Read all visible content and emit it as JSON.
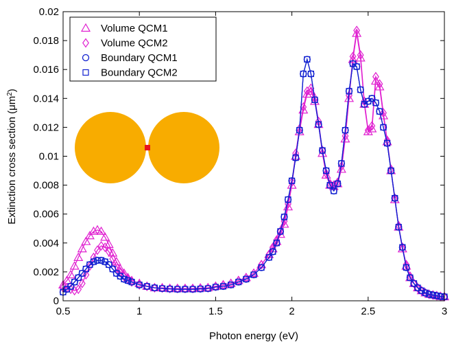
{
  "chart_data": {
    "type": "line",
    "title": "",
    "xlabel": "Photon energy (eV)",
    "ylabel_text": "Extinction cross section (",
    "ylabel_unit": "μm",
    "ylabel_sup": "2",
    "ylabel_close": ")",
    "xlim": [
      0.5,
      3
    ],
    "ylim": [
      0,
      0.02
    ],
    "xticks": [
      0.5,
      1,
      1.5,
      2,
      2.5,
      3
    ],
    "xtick_labels": [
      "0.5",
      "1",
      "1.5",
      "2",
      "2.5",
      "3"
    ],
    "yticks": [
      0,
      0.002,
      0.004,
      0.006,
      0.008,
      0.01,
      0.012,
      0.014,
      0.016,
      0.018,
      0.02
    ],
    "ytick_labels": [
      "0",
      "0.002",
      "0.004",
      "0.006",
      "0.008",
      "0.01",
      "0.012",
      "0.014",
      "0.016",
      "0.018",
      "0.02"
    ],
    "grid": false,
    "legend_position": "top-left",
    "series": [
      {
        "name": "Volume QCM1",
        "color": "#e020d0",
        "marker": "triangle",
        "x": [
          0.5,
          0.525,
          0.55,
          0.575,
          0.6,
          0.625,
          0.65,
          0.675,
          0.7,
          0.725,
          0.75,
          0.775,
          0.8,
          0.825,
          0.85,
          0.875,
          0.9,
          0.925,
          0.95,
          1.0,
          1.05,
          1.1,
          1.15,
          1.2,
          1.25,
          1.3,
          1.35,
          1.4,
          1.45,
          1.5,
          1.55,
          1.6,
          1.65,
          1.7,
          1.75,
          1.8,
          1.85,
          1.875,
          1.9,
          1.925,
          1.95,
          1.975,
          2.0,
          2.025,
          2.05,
          2.075,
          2.1,
          2.125,
          2.15,
          2.175,
          2.2,
          2.225,
          2.25,
          2.275,
          2.3,
          2.325,
          2.35,
          2.375,
          2.4,
          2.425,
          2.45,
          2.475,
          2.5,
          2.525,
          2.55,
          2.575,
          2.6,
          2.625,
          2.65,
          2.675,
          2.7,
          2.725,
          2.75,
          2.775,
          2.8,
          2.825,
          2.85,
          2.875,
          2.9,
          2.925,
          2.95,
          2.975,
          3.0
        ],
        "y": [
          0.0011,
          0.0014,
          0.0018,
          0.0024,
          0.003,
          0.0036,
          0.0041,
          0.0045,
          0.0048,
          0.0049,
          0.0048,
          0.0044,
          0.0039,
          0.0033,
          0.0027,
          0.0022,
          0.0019,
          0.0016,
          0.0014,
          0.0012,
          0.001,
          0.0009,
          0.0009,
          0.00085,
          0.00085,
          0.00085,
          0.00085,
          0.00088,
          0.0009,
          0.001,
          0.0011,
          0.0012,
          0.0014,
          0.0016,
          0.0019,
          0.0025,
          0.0032,
          0.0036,
          0.0041,
          0.0046,
          0.0053,
          0.0065,
          0.008,
          0.01,
          0.0117,
          0.0132,
          0.0143,
          0.0145,
          0.0138,
          0.0122,
          0.0102,
          0.0087,
          0.008,
          0.0079,
          0.0081,
          0.0091,
          0.0112,
          0.014,
          0.0167,
          0.0185,
          0.0168,
          0.0136,
          0.0117,
          0.0119,
          0.0152,
          0.0148,
          0.0128,
          0.011,
          0.009,
          0.007,
          0.0051,
          0.0036,
          0.0024,
          0.0016,
          0.0012,
          0.0009,
          0.0007,
          0.00055,
          0.00045,
          0.0004,
          0.00035,
          0.0003,
          0.00028
        ]
      },
      {
        "name": "Volume QCM2",
        "color": "#e020d0",
        "marker": "diamond",
        "x": [
          0.5,
          0.525,
          0.55,
          0.575,
          0.6,
          0.625,
          0.65,
          0.675,
          0.7,
          0.725,
          0.75,
          0.775,
          0.8,
          0.825,
          0.85,
          0.875,
          0.9,
          0.925,
          0.95,
          1.0,
          1.05,
          1.1,
          1.15,
          1.2,
          1.25,
          1.3,
          1.35,
          1.4,
          1.45,
          1.5,
          1.55,
          1.6,
          1.65,
          1.7,
          1.75,
          1.8,
          1.85,
          1.875,
          1.9,
          1.925,
          1.95,
          1.975,
          2.0,
          2.025,
          2.05,
          2.075,
          2.1,
          2.125,
          2.15,
          2.175,
          2.2,
          2.225,
          2.25,
          2.275,
          2.3,
          2.325,
          2.35,
          2.375,
          2.4,
          2.425,
          2.45,
          2.475,
          2.5,
          2.525,
          2.55,
          2.575,
          2.6,
          2.625,
          2.65,
          2.675,
          2.7,
          2.725,
          2.75,
          2.775,
          2.8,
          2.825,
          2.85,
          2.875,
          2.9,
          2.925,
          2.95,
          2.975,
          3.0
        ],
        "y": [
          0.0009,
          0.0009,
          0.0008,
          0.0007,
          0.0008,
          0.0012,
          0.0018,
          0.0024,
          0.003,
          0.0035,
          0.0038,
          0.0037,
          0.0034,
          0.0029,
          0.0024,
          0.002,
          0.0017,
          0.0015,
          0.0013,
          0.0011,
          0.001,
          0.0009,
          0.00088,
          0.00085,
          0.00085,
          0.00085,
          0.00085,
          0.00088,
          0.0009,
          0.001,
          0.0011,
          0.0012,
          0.0014,
          0.0016,
          0.0019,
          0.0025,
          0.0032,
          0.0037,
          0.0042,
          0.0048,
          0.0055,
          0.0067,
          0.0082,
          0.0102,
          0.0119,
          0.0134,
          0.0145,
          0.0147,
          0.014,
          0.0124,
          0.0104,
          0.0088,
          0.0081,
          0.008,
          0.0082,
          0.0093,
          0.0114,
          0.0142,
          0.0169,
          0.0187,
          0.017,
          0.0138,
          0.0118,
          0.0121,
          0.0155,
          0.015,
          0.013,
          0.0111,
          0.0091,
          0.0071,
          0.0052,
          0.0037,
          0.0025,
          0.0017,
          0.0012,
          0.0009,
          0.0007,
          0.00055,
          0.00045,
          0.0004,
          0.00035,
          0.0003,
          0.00028
        ]
      },
      {
        "name": "Boundary QCM1",
        "color": "#1020d0",
        "marker": "circle",
        "x": [
          0.5,
          0.525,
          0.55,
          0.575,
          0.6,
          0.625,
          0.65,
          0.675,
          0.7,
          0.725,
          0.75,
          0.775,
          0.8,
          0.825,
          0.85,
          0.875,
          0.9,
          0.925,
          0.95,
          1.0,
          1.05,
          1.1,
          1.15,
          1.2,
          1.25,
          1.3,
          1.35,
          1.4,
          1.45,
          1.5,
          1.55,
          1.6,
          1.65,
          1.7,
          1.75,
          1.8,
          1.85,
          1.875,
          1.9,
          1.925,
          1.95,
          1.975,
          2.0,
          2.025,
          2.05,
          2.075,
          2.1,
          2.125,
          2.15,
          2.175,
          2.2,
          2.225,
          2.25,
          2.275,
          2.3,
          2.325,
          2.35,
          2.375,
          2.4,
          2.425,
          2.45,
          2.475,
          2.5,
          2.525,
          2.55,
          2.575,
          2.6,
          2.625,
          2.65,
          2.675,
          2.7,
          2.725,
          2.75,
          2.775,
          2.8,
          2.825,
          2.85,
          2.875,
          2.9,
          2.925,
          2.95,
          2.975,
          3.0
        ],
        "y": [
          0.0006,
          0.0008,
          0.001,
          0.0013,
          0.0016,
          0.0019,
          0.0022,
          0.0025,
          0.0027,
          0.0028,
          0.0028,
          0.0027,
          0.0025,
          0.0022,
          0.0019,
          0.0017,
          0.0015,
          0.0014,
          0.0013,
          0.0011,
          0.001,
          0.0009,
          0.00085,
          0.00082,
          0.0008,
          0.0008,
          0.0008,
          0.00082,
          0.00085,
          0.00095,
          0.001,
          0.0011,
          0.0013,
          0.0015,
          0.0018,
          0.0023,
          0.003,
          0.0034,
          0.004,
          0.0048,
          0.0058,
          0.007,
          0.0083,
          0.0099,
          0.0118,
          0.0157,
          0.0167,
          0.0157,
          0.0139,
          0.0122,
          0.0104,
          0.009,
          0.008,
          0.0076,
          0.0081,
          0.0095,
          0.0118,
          0.0145,
          0.0164,
          0.0162,
          0.0146,
          0.0136,
          0.0138,
          0.014,
          0.0137,
          0.0131,
          0.012,
          0.0109,
          0.009,
          0.0071,
          0.0051,
          0.0037,
          0.0023,
          0.0016,
          0.0012,
          0.0009,
          0.0007,
          0.00055,
          0.00045,
          0.0004,
          0.00035,
          0.0003,
          0.00028
        ]
      },
      {
        "name": "Boundary QCM2",
        "color": "#1020d0",
        "marker": "square",
        "x": [
          0.5,
          0.525,
          0.55,
          0.575,
          0.6,
          0.625,
          0.65,
          0.675,
          0.7,
          0.725,
          0.75,
          0.775,
          0.8,
          0.825,
          0.85,
          0.875,
          0.9,
          0.925,
          0.95,
          1.0,
          1.05,
          1.1,
          1.15,
          1.2,
          1.25,
          1.3,
          1.35,
          1.4,
          1.45,
          1.5,
          1.55,
          1.6,
          1.65,
          1.7,
          1.75,
          1.8,
          1.85,
          1.875,
          1.9,
          1.925,
          1.95,
          1.975,
          2.0,
          2.025,
          2.05,
          2.075,
          2.1,
          2.125,
          2.15,
          2.175,
          2.2,
          2.225,
          2.25,
          2.275,
          2.3,
          2.325,
          2.35,
          2.375,
          2.4,
          2.425,
          2.45,
          2.475,
          2.5,
          2.525,
          2.55,
          2.575,
          2.6,
          2.625,
          2.65,
          2.675,
          2.7,
          2.725,
          2.75,
          2.775,
          2.8,
          2.825,
          2.85,
          2.875,
          2.9,
          2.925,
          2.95,
          2.975,
          3.0
        ],
        "y": [
          0.0006,
          0.0008,
          0.001,
          0.0013,
          0.0016,
          0.0019,
          0.0022,
          0.0025,
          0.0027,
          0.0028,
          0.0028,
          0.0027,
          0.0025,
          0.0022,
          0.0019,
          0.0017,
          0.0015,
          0.0014,
          0.0013,
          0.0011,
          0.001,
          0.0009,
          0.00085,
          0.00082,
          0.0008,
          0.0008,
          0.0008,
          0.00082,
          0.00085,
          0.00095,
          0.001,
          0.0011,
          0.0013,
          0.0015,
          0.0018,
          0.0023,
          0.003,
          0.0034,
          0.004,
          0.0048,
          0.0058,
          0.007,
          0.0083,
          0.0099,
          0.0118,
          0.0157,
          0.0167,
          0.0157,
          0.0139,
          0.0122,
          0.0104,
          0.009,
          0.008,
          0.0076,
          0.0081,
          0.0095,
          0.0118,
          0.0145,
          0.0164,
          0.0162,
          0.0146,
          0.0136,
          0.0138,
          0.014,
          0.0137,
          0.0131,
          0.012,
          0.0109,
          0.009,
          0.0071,
          0.0051,
          0.0037,
          0.0023,
          0.0016,
          0.0012,
          0.0009,
          0.0007,
          0.00055,
          0.00045,
          0.0004,
          0.00035,
          0.0003,
          0.00028
        ]
      }
    ],
    "inset": {
      "sphere_color": "#f8ac00",
      "gap_color": "#e8141e"
    }
  }
}
